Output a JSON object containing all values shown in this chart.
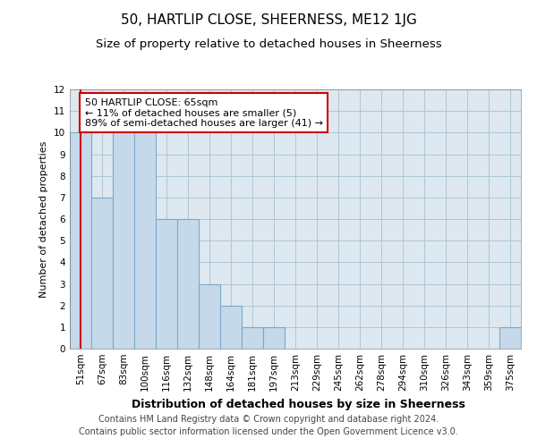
{
  "title": "50, HARTLIP CLOSE, SHEERNESS, ME12 1JG",
  "subtitle": "Size of property relative to detached houses in Sheerness",
  "xlabel": "Distribution of detached houses by size in Sheerness",
  "ylabel": "Number of detached properties",
  "categories": [
    "51sqm",
    "67sqm",
    "83sqm",
    "100sqm",
    "116sqm",
    "132sqm",
    "148sqm",
    "164sqm",
    "181sqm",
    "197sqm",
    "213sqm",
    "229sqm",
    "245sqm",
    "262sqm",
    "278sqm",
    "294sqm",
    "310sqm",
    "326sqm",
    "343sqm",
    "359sqm",
    "375sqm"
  ],
  "values": [
    10,
    7,
    10,
    10,
    6,
    6,
    3,
    2,
    1,
    1,
    0,
    0,
    0,
    0,
    0,
    0,
    0,
    0,
    0,
    0,
    1
  ],
  "bar_color": "#c6d9ea",
  "bar_edge_color": "#7aaac8",
  "bar_edge_width": 0.8,
  "grid_color": "#adc6d8",
  "bg_color": "#dde8f0",
  "annotation_text": "50 HARTLIP CLOSE: 65sqm\n← 11% of detached houses are smaller (5)\n89% of semi-detached houses are larger (41) →",
  "annotation_box_edge": "#cc0000",
  "property_line_color": "#cc0000",
  "property_line_x": 0.5,
  "ylim": [
    0,
    12
  ],
  "yticks": [
    0,
    1,
    2,
    3,
    4,
    5,
    6,
    7,
    8,
    9,
    10,
    11,
    12
  ],
  "footer_line1": "Contains HM Land Registry data © Crown copyright and database right 2024.",
  "footer_line2": "Contains public sector information licensed under the Open Government Licence v3.0.",
  "title_fontsize": 11,
  "subtitle_fontsize": 9.5,
  "xlabel_fontsize": 9,
  "ylabel_fontsize": 8,
  "tick_fontsize": 7.5,
  "annotation_fontsize": 8,
  "footer_fontsize": 7
}
